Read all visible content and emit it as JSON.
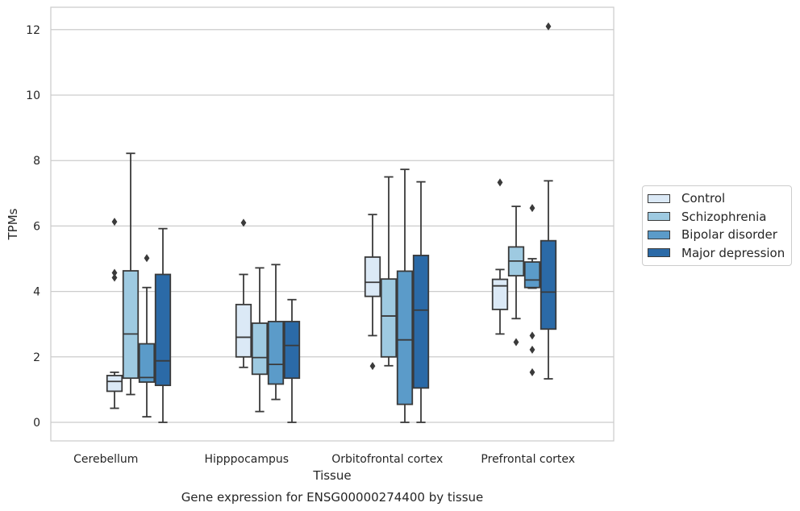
{
  "chart_data": {
    "type": "box",
    "title": "",
    "caption": "Gene expression for ENSG00000274400 by tissue",
    "xlabel": "Tissue",
    "ylabel": "TPMs",
    "ylim": [
      -0.6,
      12.7
    ],
    "yticks": [
      0,
      2,
      4,
      6,
      8,
      10,
      12
    ],
    "grid": "horizontal",
    "legend_position": "right",
    "categories": [
      "Cerebellum",
      "Hipppocampus",
      "Orbitofrontal cortex",
      "Prefrontal cortex"
    ],
    "series": [
      {
        "name": "Control",
        "color": "#dbe9f6",
        "boxes": [
          {
            "whislo": 0.43,
            "q1": 0.95,
            "med": 1.25,
            "q3": 1.43,
            "whishi": 1.53,
            "fliers": [
              6.13,
              4.57,
              4.42
            ]
          },
          {
            "whislo": 1.68,
            "q1": 2.0,
            "med": 2.6,
            "q3": 3.6,
            "whishi": 4.52,
            "fliers": [
              6.1
            ]
          },
          {
            "whislo": 2.65,
            "q1": 3.85,
            "med": 4.28,
            "q3": 5.05,
            "whishi": 6.35,
            "fliers": [
              1.72
            ]
          },
          {
            "whislo": 2.7,
            "q1": 3.45,
            "med": 4.17,
            "q3": 4.37,
            "whishi": 4.67,
            "fliers": [
              7.33
            ]
          }
        ]
      },
      {
        "name": "Schizophrenia",
        "color": "#9ecae1",
        "boxes": [
          {
            "whislo": 0.85,
            "q1": 1.35,
            "med": 2.7,
            "q3": 4.63,
            "whishi": 8.22,
            "fliers": []
          },
          {
            "whislo": 0.33,
            "q1": 1.47,
            "med": 1.98,
            "q3": 3.03,
            "whishi": 4.72,
            "fliers": []
          },
          {
            "whislo": 1.73,
            "q1": 2.0,
            "med": 3.25,
            "q3": 4.38,
            "whishi": 7.5,
            "fliers": []
          },
          {
            "whislo": 3.17,
            "q1": 4.48,
            "med": 4.93,
            "q3": 5.36,
            "whishi": 6.6,
            "fliers": [
              2.45
            ]
          }
        ]
      },
      {
        "name": "Bipolar disorder",
        "color": "#5b9bc9",
        "boxes": [
          {
            "whislo": 0.17,
            "q1": 1.23,
            "med": 1.37,
            "q3": 2.4,
            "whishi": 4.12,
            "fliers": [
              5.02
            ]
          },
          {
            "whislo": 0.7,
            "q1": 1.17,
            "med": 1.77,
            "q3": 3.08,
            "whishi": 4.82,
            "fliers": []
          },
          {
            "whislo": 0.0,
            "q1": 0.55,
            "med": 2.52,
            "q3": 4.62,
            "whishi": 7.73,
            "fliers": []
          },
          {
            "whislo": 4.1,
            "q1": 4.12,
            "med": 4.35,
            "q3": 4.9,
            "whishi": 5.0,
            "fliers": [
              6.55,
              2.65,
              2.22,
              1.53
            ]
          }
        ]
      },
      {
        "name": "Major depression",
        "color": "#2b6aa7",
        "boxes": [
          {
            "whislo": 0.0,
            "q1": 1.13,
            "med": 1.88,
            "q3": 4.52,
            "whishi": 5.92,
            "fliers": []
          },
          {
            "whislo": 0.0,
            "q1": 1.35,
            "med": 2.35,
            "q3": 3.08,
            "whishi": 3.75,
            "fliers": []
          },
          {
            "whislo": 0.0,
            "q1": 1.05,
            "med": 3.43,
            "q3": 5.1,
            "whishi": 7.35,
            "fliers": []
          },
          {
            "whislo": 1.33,
            "q1": 2.85,
            "med": 3.98,
            "q3": 5.55,
            "whishi": 7.38,
            "fliers": [
              12.1
            ]
          }
        ]
      }
    ]
  }
}
